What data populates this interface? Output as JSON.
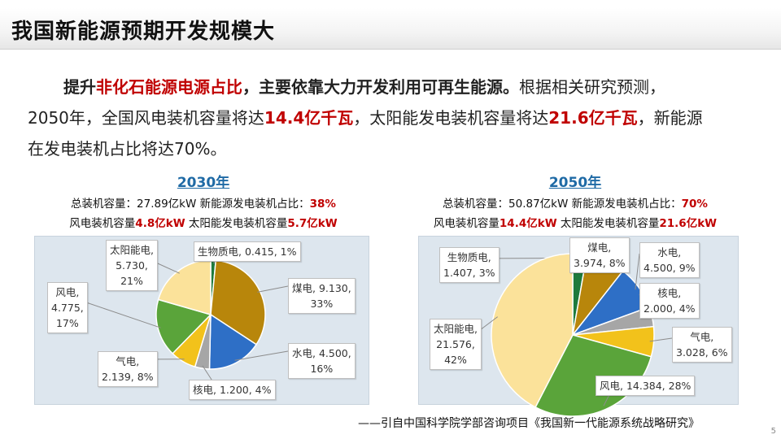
{
  "title": "我国新能源预期开发规模大",
  "intro": {
    "p1_bold": "提升",
    "p1_red": "非化石能源电源占比",
    "p1_bold2": "，主要依靠大力开发利用可再生能源。",
    "p1_rest": "根据相关研究预测，",
    "p2_a": "2050年，全国风电装机容量将达",
    "p2_red1": "14.4亿千瓦",
    "p2_b": "，太阳能发电装机容量将达",
    "p2_red2": "21.6亿千瓦",
    "p2_c": "，新能源",
    "p3": "在发电装机占比将达70%。"
  },
  "panels": [
    {
      "year": "2030年",
      "l1a": "总装机容量：27.89亿kW  新能源发电装机占比：",
      "l1b": "38%",
      "l2a": "风电装机容量",
      "l2b": "4.8亿kW",
      "l2c": "  太阳能发电装机容量",
      "l2d": "5.7亿kW"
    },
    {
      "year": "2050年",
      "l1a": "总装机容量：50.87亿kW  新能源发电装机占比：",
      "l1b": "70%",
      "l2a": "风电装机容量",
      "l2b": "14.4亿kW",
      "l2c": " 太阳能发电装机容量",
      "l2d": "21.6亿kW"
    }
  ],
  "chart_data": [
    {
      "type": "pie",
      "title": "2030年",
      "slices": [
        {
          "name": "生物质电",
          "value": 0.415,
          "pct": "1%",
          "color": "#1e7a3c"
        },
        {
          "name": "煤电",
          "value": 9.13,
          "pct": "33%",
          "color": "#b8860b"
        },
        {
          "name": "水电",
          "value": 4.5,
          "pct": "16%",
          "color": "#2e6fc6"
        },
        {
          "name": "核电",
          "value": 1.2,
          "pct": "4%",
          "color": "#a6a6a6"
        },
        {
          "name": "气电",
          "value": 2.139,
          "pct": "8%",
          "color": "#f2c21b"
        },
        {
          "name": "风电",
          "value": 4.775,
          "pct": "17%",
          "color": "#5aa43a"
        },
        {
          "name": "太阳能电",
          "value": 5.73,
          "pct": "21%",
          "color": "#fbe29a"
        }
      ],
      "labels": [
        {
          "l1": "生物质电, 0.415, 1%",
          "l2": ""
        },
        {
          "l1": "煤电, 9.130,",
          "l2": "33%"
        },
        {
          "l1": "水电, 4.500,",
          "l2": "16%"
        },
        {
          "l1": "核电, 1.200, 4%",
          "l2": ""
        },
        {
          "l1": "气电,",
          "l2": "2.139, 8%"
        },
        {
          "l1": "风电,",
          "l2": "4.775,",
          "l3": "17%"
        },
        {
          "l1": "太阳能电,",
          "l2": "5.730,",
          "l3": "21%"
        }
      ]
    },
    {
      "type": "pie",
      "title": "2050年",
      "slices": [
        {
          "name": "生物质电",
          "value": 1.407,
          "pct": "3%",
          "color": "#1e7a3c"
        },
        {
          "name": "煤电",
          "value": 3.974,
          "pct": "8%",
          "color": "#b8860b"
        },
        {
          "name": "水电",
          "value": 4.5,
          "pct": "9%",
          "color": "#2e6fc6"
        },
        {
          "name": "核电",
          "value": 2.0,
          "pct": "4%",
          "color": "#a6a6a6"
        },
        {
          "name": "气电",
          "value": 3.028,
          "pct": "6%",
          "color": "#f2c21b"
        },
        {
          "name": "风电",
          "value": 14.384,
          "pct": "28%",
          "color": "#5aa43a"
        },
        {
          "name": "太阳能电",
          "value": 21.576,
          "pct": "42%",
          "color": "#fbe29a"
        }
      ],
      "labels": [
        {
          "l1": "生物质电,",
          "l2": "1.407, 3%"
        },
        {
          "l1": "煤电,",
          "l2": "3.974, 8%"
        },
        {
          "l1": "水电,",
          "l2": "4.500, 9%"
        },
        {
          "l1": "核电,",
          "l2": "2.000, 4%"
        },
        {
          "l1": "气电,",
          "l2": "3.028, 6%"
        },
        {
          "l1": "风电, 14.384, 28%",
          "l2": ""
        },
        {
          "l1": "太阳能电,",
          "l2": "21.576,",
          "l3": "42%"
        }
      ]
    }
  ],
  "source": "——引自中国科学院学部咨询项目《我国新一代能源系统战略研究》",
  "page_number": "5"
}
